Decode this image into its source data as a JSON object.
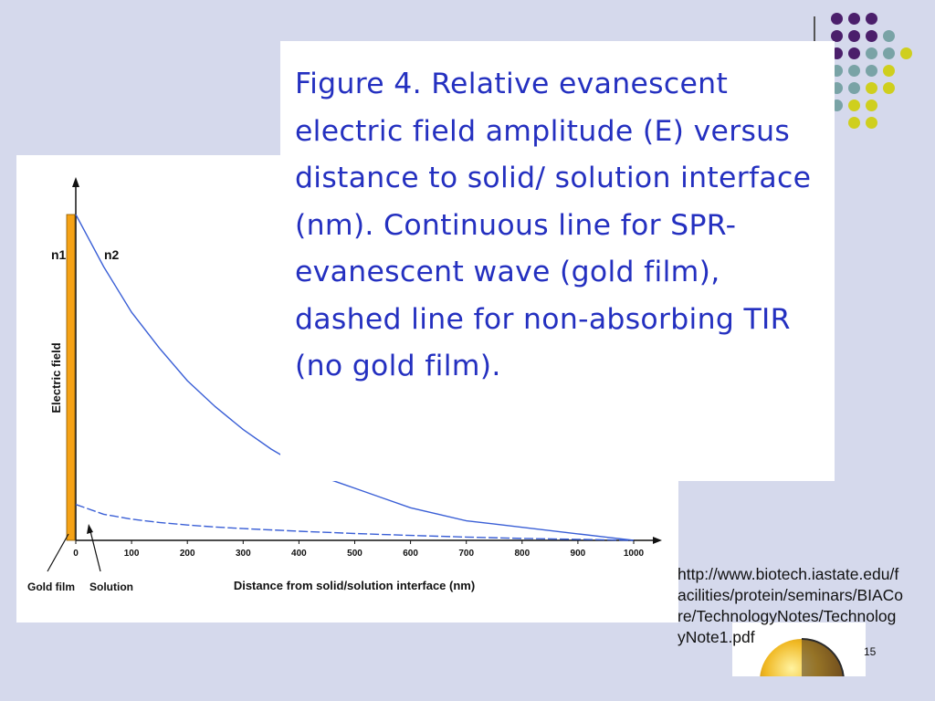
{
  "slide": {
    "caption": "Figure 4. Relative evanescent electric field amplitude (E) versus distance to solid/ solution interface (nm). Continuous line for SPR-evanescent wave (gold film), dashed line for non-absorbing TIR (no gold film).",
    "url": "http://www.biotech.iastate.edu/facilities/protein/seminars/BIACore/TechnologyNotes/TechnologyNote1.pdf",
    "page_number": "15",
    "colors": {
      "background": "#d5d9ec",
      "caption_text": "#2430c0",
      "curve": "#3a5fd6",
      "gold_film": "#f5a216",
      "dot_purple": "#4b1f6b",
      "dot_teal": "#79a3a6",
      "dot_yellow": "#cfcf1e"
    },
    "logo_icon": "gold-sphere-icon"
  },
  "chart_data": {
    "type": "line",
    "ylabel": "Electric field",
    "xlabel": "Distance from solid/solution interface (nm)",
    "x_ticks": [
      "0",
      "100",
      "200",
      "300",
      "400",
      "500",
      "600",
      "700",
      "800",
      "900",
      "1000"
    ],
    "xlim": [
      0,
      1000
    ],
    "ylim": [
      0,
      1
    ],
    "medium_labels": {
      "n1": "n1",
      "n2": "n2"
    },
    "annotations": {
      "gold_film": "Gold film",
      "solution": "Solution"
    },
    "series": [
      {
        "x": [
          0,
          50,
          100,
          150,
          200,
          250,
          300,
          350,
          400,
          450,
          500,
          550,
          600,
          650,
          700,
          750,
          800,
          850,
          900,
          950,
          1000
        ],
        "y": [
          1.0,
          0.84,
          0.7,
          0.59,
          0.49,
          0.41,
          0.34,
          0.28,
          0.23,
          0.19,
          0.16,
          0.13,
          0.1,
          0.08,
          0.06,
          0.05,
          0.04,
          0.03,
          0.02,
          0.01,
          0.0
        ]
      },
      {
        "x": [
          0,
          50,
          100,
          150,
          200,
          250,
          300,
          400,
          500,
          600,
          700,
          800,
          900,
          1000
        ],
        "y": [
          0.11,
          0.08,
          0.065,
          0.055,
          0.047,
          0.041,
          0.036,
          0.028,
          0.021,
          0.015,
          0.01,
          0.006,
          0.003,
          0.0
        ]
      }
    ]
  }
}
